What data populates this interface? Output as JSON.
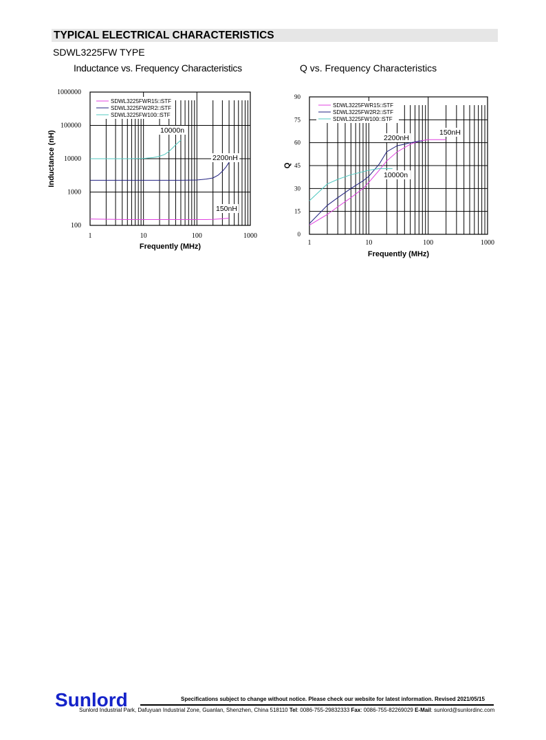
{
  "header": {
    "section_title": "TYPICAL ELECTRICAL CHARACTERISTICS",
    "type_label": "SDWL3225FW TYPE"
  },
  "colors": {
    "magenta": "#e040e0",
    "navy": "#202080",
    "teal": "#50c8c0"
  },
  "chart_data": [
    {
      "type": "line",
      "title": "Inductance vs. Frequency Characteristics",
      "xlabel": "Frequently (MHz)",
      "ylabel": "Inductance (nH)",
      "xscale": "log",
      "yscale": "log",
      "xlim": [
        1,
        1000
      ],
      "ylim": [
        100,
        1000000
      ],
      "xticks": [
        "1",
        "10",
        "100",
        "1000"
      ],
      "yticks": [
        "100",
        "1000",
        "10000",
        "100000",
        "1000000"
      ],
      "grid": true,
      "legend": "top-left",
      "series": [
        {
          "name": "SDWL3225FWR15□STF",
          "color": "magenta",
          "x": [
            1,
            5,
            50,
            150,
            200,
            300,
            400
          ],
          "y": [
            155,
            150,
            150,
            150,
            152,
            158,
            165
          ]
        },
        {
          "name": "SDWL3225FW2R2□STF",
          "color": "navy",
          "x": [
            1,
            10,
            50,
            100,
            150,
            200,
            250,
            300,
            350,
            400
          ],
          "y": [
            2250,
            2250,
            2250,
            2300,
            2450,
            2650,
            3200,
            4200,
            5600,
            7800
          ]
        },
        {
          "name": "SDWL3225FW100□STF",
          "color": "teal",
          "x": [
            1,
            5,
            10,
            15,
            20,
            25,
            30,
            35,
            40,
            45,
            50
          ],
          "y": [
            10000,
            10000,
            10200,
            10800,
            11800,
            13500,
            16500,
            21000,
            26000,
            31000,
            36000
          ]
        }
      ],
      "annotations": [
        "10000n",
        "2200nH",
        "150nH"
      ]
    },
    {
      "type": "line",
      "title": "Q vs. Frequency Characteristics",
      "xlabel": "Frequently (MHz)",
      "ylabel": "Q",
      "xscale": "log",
      "xlim": [
        1,
        1000
      ],
      "ylim": [
        0,
        90
      ],
      "xticks": [
        "1",
        "10",
        "100",
        "1000"
      ],
      "yticks": [
        "0",
        "15",
        "30",
        "45",
        "60",
        "75",
        "90"
      ],
      "grid": true,
      "legend": "top-left",
      "series": [
        {
          "name": "SDWL3225FWR15□STF",
          "color": "magenta",
          "x": [
            1,
            2,
            3,
            5,
            8,
            10,
            15,
            20,
            30,
            50,
            70,
            100,
            150,
            200
          ],
          "y": [
            6,
            13,
            18,
            24,
            30,
            34,
            42,
            48,
            54,
            59,
            61,
            62,
            62,
            62
          ]
        },
        {
          "name": "SDWL3225FW2R2□STF",
          "color": "navy",
          "x": [
            1,
            2,
            3,
            5,
            8,
            10,
            15,
            20,
            30,
            40,
            50,
            60,
            70,
            80
          ],
          "y": [
            7,
            19,
            24,
            30,
            35,
            38,
            46,
            54,
            58,
            59,
            60,
            60.5,
            61,
            61
          ]
        },
        {
          "name": "SDWL3225FW100□STF",
          "color": "teal",
          "x": [
            1,
            2,
            3,
            5,
            8,
            10,
            15,
            20,
            25
          ],
          "y": [
            22,
            33,
            36,
            39,
            41,
            42,
            43,
            43,
            43
          ]
        }
      ],
      "annotations": [
        "150nH",
        "2200nH",
        "10000n"
      ]
    }
  ],
  "footer": {
    "logo": "Sunlord",
    "notice": "Specifications subject to change without notice. Please check our website for latest information.     Revised 2021/05/15",
    "address": "Sunlord Industrial Park, Dafuyuan Industrial Zone, Guanlan, Shenzhen, China 518110 ",
    "tel_label": "Tel",
    "tel": ": 0086-755-29832333 ",
    "fax_label": "Fax",
    "fax": ": 0086-755-82269029 ",
    "email_label": "E-Mail",
    "email": ": sunlord@sunlordinc.com"
  }
}
